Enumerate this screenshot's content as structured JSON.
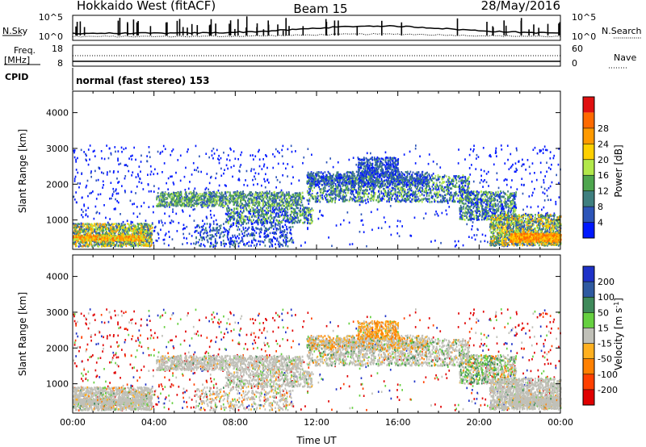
{
  "header": {
    "station": "Hokkaido West (fitACF)",
    "beam": "Beam 15",
    "date": "28/May/2016"
  },
  "summary_panel": {
    "nsky_label": "N.Sky",
    "nsky_ticks": [
      "10^5",
      "10^0"
    ],
    "nsearch_label": "N.Search",
    "nsearch_ticks": [
      "10^5",
      "10^0"
    ],
    "freq_label": "Freq.",
    "freq_unit": "[MHz]",
    "freq_ticks": [
      "18",
      "8"
    ],
    "nave_label": "Nave",
    "nave_ticks": [
      "60",
      "0"
    ],
    "cpid_label": "CPID",
    "cpid_text": "normal (fast stereo) 153"
  },
  "chart_data": [
    {
      "type": "heatmap",
      "panel": "power",
      "ylabel": "Slant Range [km]",
      "xlabel": "",
      "xlim": [
        0,
        24
      ],
      "ylim": [
        180,
        4600
      ],
      "x_ticks": [
        0,
        4,
        8,
        12,
        16,
        20,
        24
      ],
      "y_ticks": [
        1000,
        2000,
        3000,
        4000
      ],
      "colorbar": {
        "label": "Power [dB]",
        "ticks": [
          "4",
          "8",
          "12",
          "16",
          "20",
          "24",
          "28"
        ],
        "colors": [
          "#0018ff",
          "#2d55b8",
          "#3f7f7f",
          "#4ea64e",
          "#b2e84a",
          "#ffd000",
          "#ff9a00",
          "#ff6a00",
          "#e01010"
        ]
      },
      "regions": [
        {
          "x": [
            0.0,
            3.9
          ],
          "y": [
            250,
            900
          ],
          "level": "8-20 dB, peak ~24 dB near 500 km"
        },
        {
          "x": [
            0.2,
            24.0
          ],
          "y": [
            250,
            3100
          ],
          "level": "sparse 4-8 dB"
        },
        {
          "x": [
            4.0,
            11.5
          ],
          "y": [
            1350,
            1800
          ],
          "level": "8-16 dB band"
        },
        {
          "x": [
            8.0,
            12.0
          ],
          "y": [
            900,
            1300
          ],
          "level": "4-16 dB"
        },
        {
          "x": [
            11.5,
            21.5
          ],
          "y": [
            1450,
            2300
          ],
          "level": "4-16 dB band"
        },
        {
          "x": [
            14.0,
            16.0
          ],
          "y": [
            2200,
            2800
          ],
          "level": "4-12 dB"
        },
        {
          "x": [
            20.5,
            24.0
          ],
          "y": [
            300,
            1200
          ],
          "level": "8-24 dB, peak ~24 dB near 500 km"
        }
      ]
    },
    {
      "type": "heatmap",
      "panel": "velocity",
      "ylabel": "Slant Range [km]",
      "xlabel": "Time UT",
      "xlim": [
        0,
        24
      ],
      "ylim": [
        180,
        4600
      ],
      "x_ticks": [
        0,
        4,
        8,
        12,
        16,
        20,
        24
      ],
      "x_tick_labels": [
        "00:00",
        "04:00",
        "08:00",
        "12:00",
        "16:00",
        "20:00",
        "00:00"
      ],
      "y_ticks": [
        1000,
        2000,
        3000,
        4000
      ],
      "colorbar": {
        "label": "Velocity [m s^-1]",
        "ticks": [
          "200",
          "100",
          "50",
          "15",
          "-15",
          "-50",
          "-100",
          "-200"
        ],
        "colors": [
          "#1e32c8",
          "#2f5aa0",
          "#3f8a5a",
          "#66d040",
          "#c0c0b8",
          "#ffb020",
          "#ff8000",
          "#ff4000",
          "#e00000"
        ]
      },
      "regions": [
        {
          "x": [
            0.0,
            3.9
          ],
          "y": [
            250,
            900
          ],
          "level": "ground scatter ~0 m/s"
        },
        {
          "x": [
            4.0,
            12.0
          ],
          "y": [
            1300,
            1900
          ],
          "level": "~0 m/s"
        },
        {
          "x": [
            12.0,
            19.5
          ],
          "y": [
            1500,
            2000
          ],
          "level": "~0 to +50 m/s"
        },
        {
          "x": [
            14.0,
            15.3
          ],
          "y": [
            2300,
            2700
          ],
          "level": "-15 to -50 m/s"
        },
        {
          "x": [
            19.0,
            21.5
          ],
          "y": [
            1000,
            1800
          ],
          "level": "+15 to +50 m/s"
        },
        {
          "x": [
            20.5,
            24.0
          ],
          "y": [
            300,
            1000
          ],
          "level": "~0 m/s"
        }
      ]
    }
  ]
}
